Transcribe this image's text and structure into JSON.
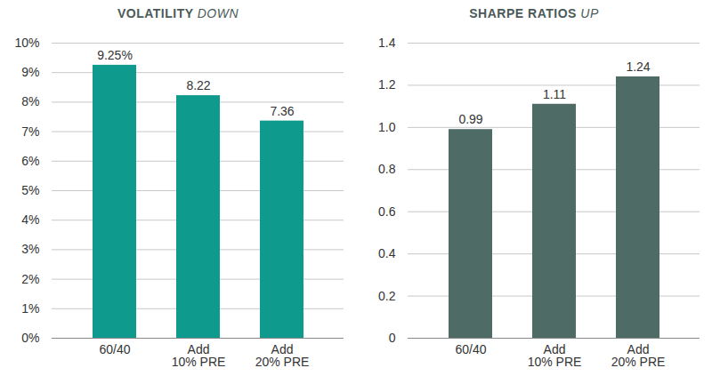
{
  "chart_data": [
    {
      "type": "bar",
      "title": "VOLATILITY DOWN",
      "categories": [
        "60/40",
        "Add\n10% PRE",
        "Add\n20% PRE"
      ],
      "values": [
        9.25,
        8.22,
        7.36
      ],
      "value_labels": [
        "9.25%",
        "8.22",
        "7.36"
      ],
      "data_labels": true,
      "color": "#0e9a8c",
      "ylim": [
        0,
        10
      ],
      "yticks": [
        {
          "value": 0,
          "label": "0%"
        },
        {
          "value": 1,
          "label": "1%"
        },
        {
          "value": 2,
          "label": "2%"
        },
        {
          "value": 3,
          "label": "3%"
        },
        {
          "value": 4,
          "label": "4%"
        },
        {
          "value": 5,
          "label": "5%"
        },
        {
          "value": 6,
          "label": "6%"
        },
        {
          "value": 7,
          "label": "7%"
        },
        {
          "value": 8,
          "label": "8%"
        },
        {
          "value": 9,
          "label": "9%"
        },
        {
          "value": 10,
          "label": "10%"
        }
      ],
      "grid": true
    },
    {
      "type": "bar",
      "title": "SHARPE RATIOS UP",
      "categories": [
        "60/40",
        "Add\n10% PRE",
        "Add\n20% PRE"
      ],
      "values": [
        0.99,
        1.11,
        1.24
      ],
      "data_labels": true,
      "color": "#4e6b66",
      "ylim": [
        0,
        1.4
      ],
      "yticks": [
        0,
        0.2,
        0.4,
        0.6,
        0.8,
        {
          "value": 1,
          "label": "1.0"
        },
        1.2,
        1.4
      ],
      "grid": true
    }
  ]
}
